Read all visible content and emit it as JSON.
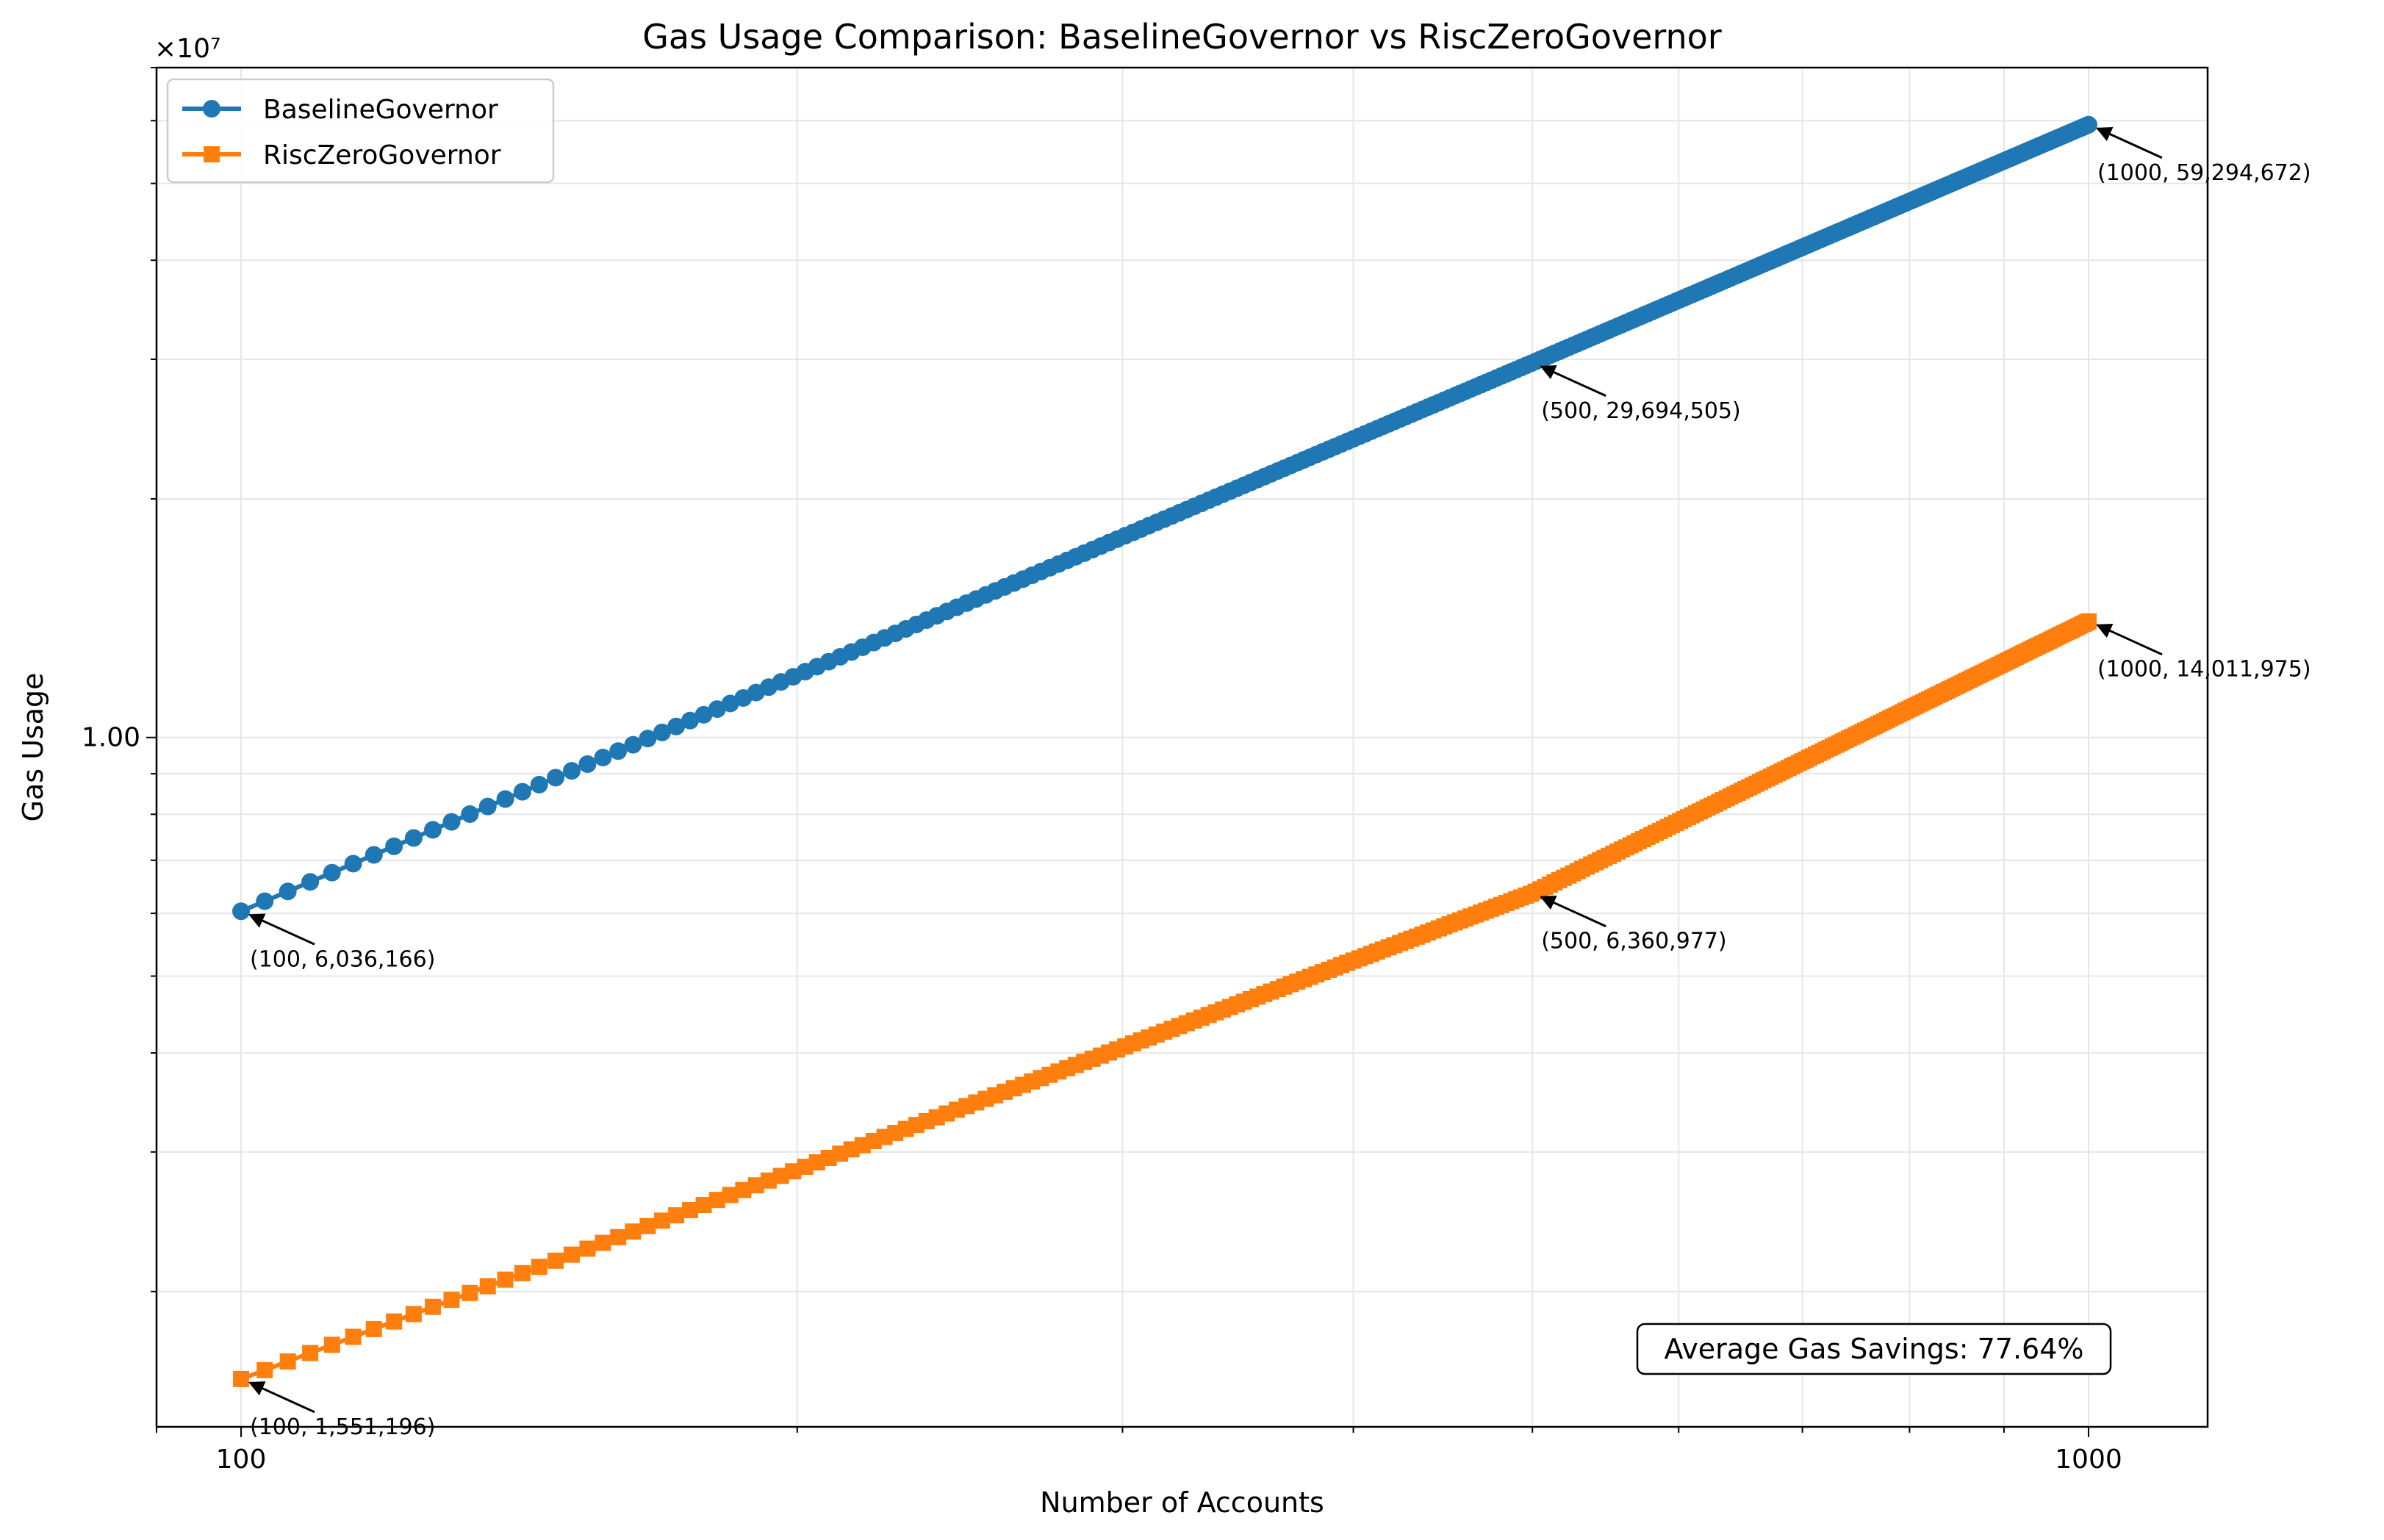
{
  "chart_data": {
    "type": "line",
    "title": "Gas Usage Comparison: BaselineGovernor vs RiscZeroGovernor",
    "xlabel": "Number of Accounts",
    "ylabel": "Gas Usage",
    "y_offset_label": "×10⁷",
    "x_scale": "log",
    "y_scale": "log",
    "xlim": [
      90,
      1160
    ],
    "ylim": [
      1350000,
      70000000
    ],
    "x_ticks": [
      {
        "value": 100,
        "label": "100"
      },
      {
        "value": 1000,
        "label": "1000"
      }
    ],
    "y_ticks": [
      {
        "value": 10000000,
        "label": "1.00"
      }
    ],
    "grid": true,
    "legend": "top-left",
    "series": [
      {
        "name": "BaselineGovernor",
        "color": "#1f77b4",
        "marker": "circle",
        "start": {
          "x": 100,
          "y": 6036166
        },
        "mid": {
          "x": 500,
          "y": 29694505
        },
        "end": {
          "x": 1000,
          "y": 59294672
        }
      },
      {
        "name": "RiscZeroGovernor",
        "color": "#ff7f0e",
        "marker": "square",
        "start": {
          "x": 100,
          "y": 1551196
        },
        "mid": {
          "x": 500,
          "y": 6360977
        },
        "end": {
          "x": 1000,
          "y": 14011975
        }
      }
    ],
    "annotations": [
      {
        "x": 100,
        "y": 6036166,
        "text": "(100, 6,036,166)"
      },
      {
        "x": 500,
        "y": 29694505,
        "text": "(500, 29,694,505)"
      },
      {
        "x": 1000,
        "y": 59294672,
        "text": "(1000, 59,294,672)"
      },
      {
        "x": 100,
        "y": 1551196,
        "text": "(100, 1,551,196)"
      },
      {
        "x": 500,
        "y": 6360977,
        "text": "(500, 6,360,977)"
      },
      {
        "x": 1000,
        "y": 14011975,
        "text": "(1000, 14,011,975)"
      }
    ],
    "summary_box": "Average Gas Savings: 77.64%"
  }
}
